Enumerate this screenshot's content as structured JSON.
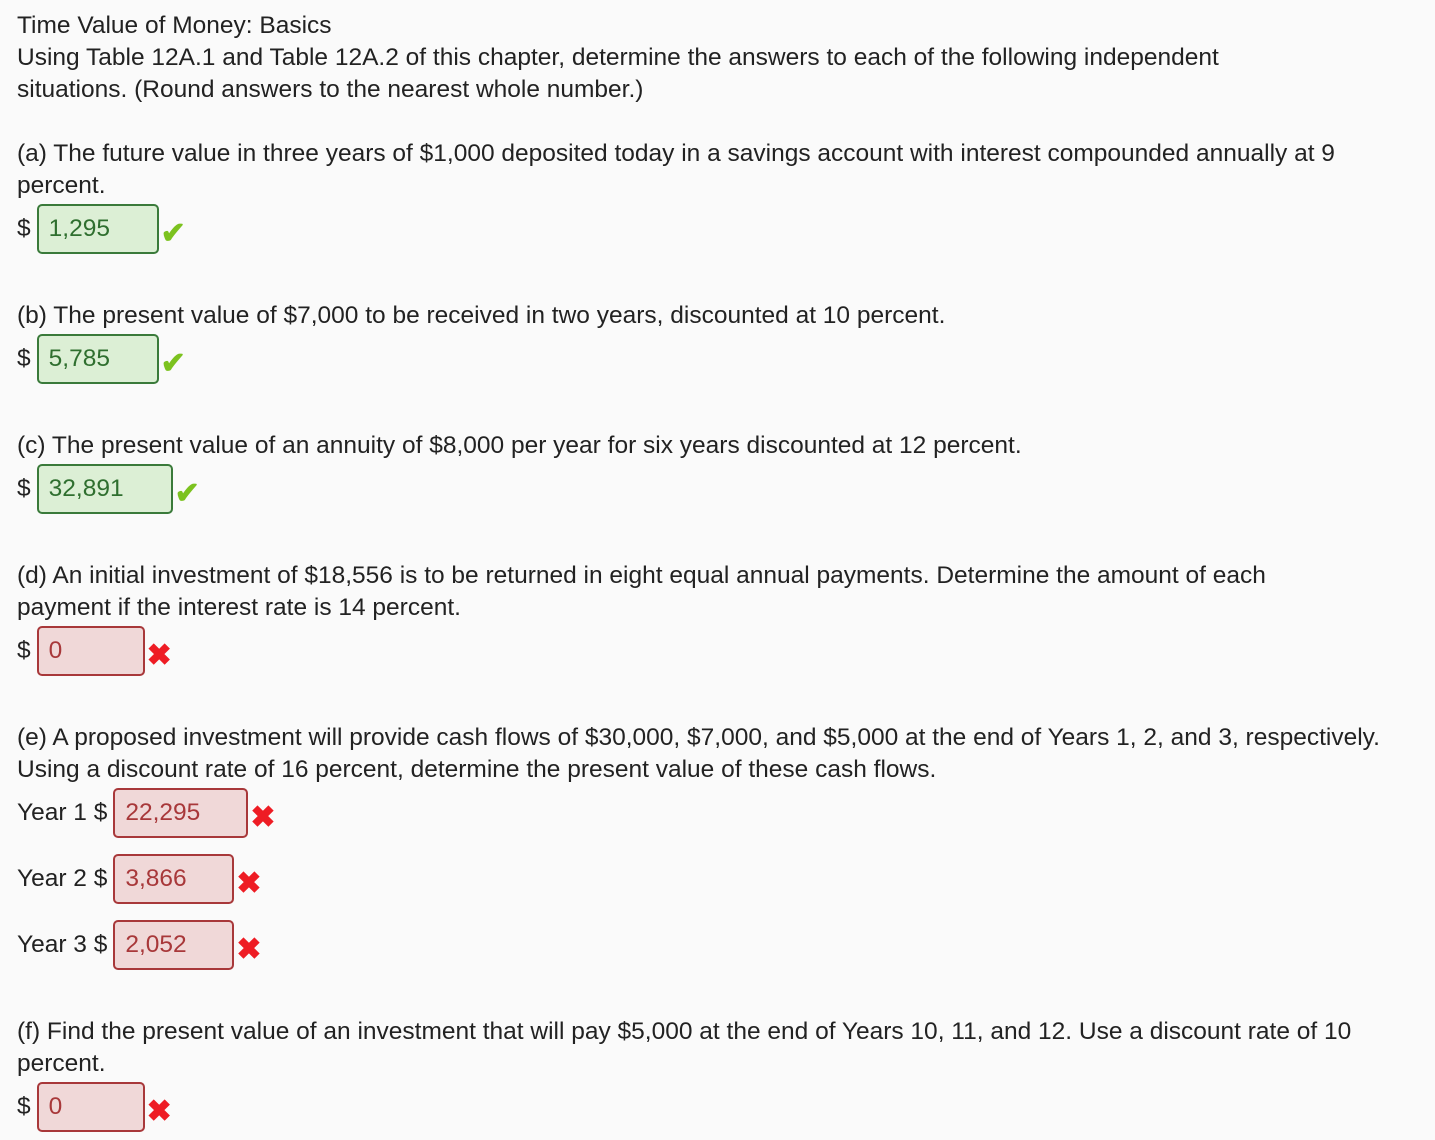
{
  "title": "Time Value of Money: Basics",
  "intro": [
    "Using Table 12A.1 and Table 12A.2 of this chapter, determine the answers to each of the following independent",
    "situations. (Round answers to the nearest whole number.)"
  ],
  "a": {
    "q": [
      "(a) The future value in three years of $1,000 deposited today in a savings account with interest compounded annually at 9",
      "percent."
    ],
    "prefix": "$",
    "value": "1,295",
    "status": "correct"
  },
  "b": {
    "q": [
      "(b) The present value of $7,000 to be received in two years, discounted at 10 percent."
    ],
    "prefix": "$",
    "value": "5,785",
    "status": "correct"
  },
  "c": {
    "q": [
      "(c) The present value of an annuity of $8,000 per year for six years discounted at 12 percent."
    ],
    "prefix": "$",
    "value": "32,891",
    "status": "correct"
  },
  "d": {
    "q": [
      "(d) An initial investment of $18,556 is to be returned in eight equal annual payments. Determine the amount of each",
      "payment if the interest rate is 14 percent."
    ],
    "prefix": "$",
    "value": "0",
    "status": "incorrect"
  },
  "e": {
    "q": [
      "(e) A proposed investment will provide cash flows of $30,000, $7,000, and $5,000 at the end of Years 1, 2, and 3, respectively.",
      "Using a discount rate of 16 percent, determine the present value of these cash flows."
    ],
    "rows": [
      {
        "label": "Year 1 $",
        "value": "22,295",
        "status": "incorrect"
      },
      {
        "label": "Year 2 $",
        "value": "3,866",
        "status": "incorrect"
      },
      {
        "label": "Year 3 $",
        "value": "2,052",
        "status": "incorrect"
      }
    ]
  },
  "f": {
    "q": [
      "(f) Find the present value of an investment that will pay $5,000 at the end of Years 10, 11, and 12. Use a discount rate of 10",
      "percent."
    ],
    "prefix": "$",
    "value": "0",
    "status": "incorrect"
  },
  "marks": {
    "correct": "✔",
    "incorrect": "✖"
  },
  "colors": {
    "correct_bg": "#dcefd5",
    "correct_border": "#3a7a3a",
    "incorrect_bg": "#f0d8d8",
    "incorrect_border": "#a8383a",
    "check": "#7cc21f",
    "cross": "#ee1c24"
  }
}
